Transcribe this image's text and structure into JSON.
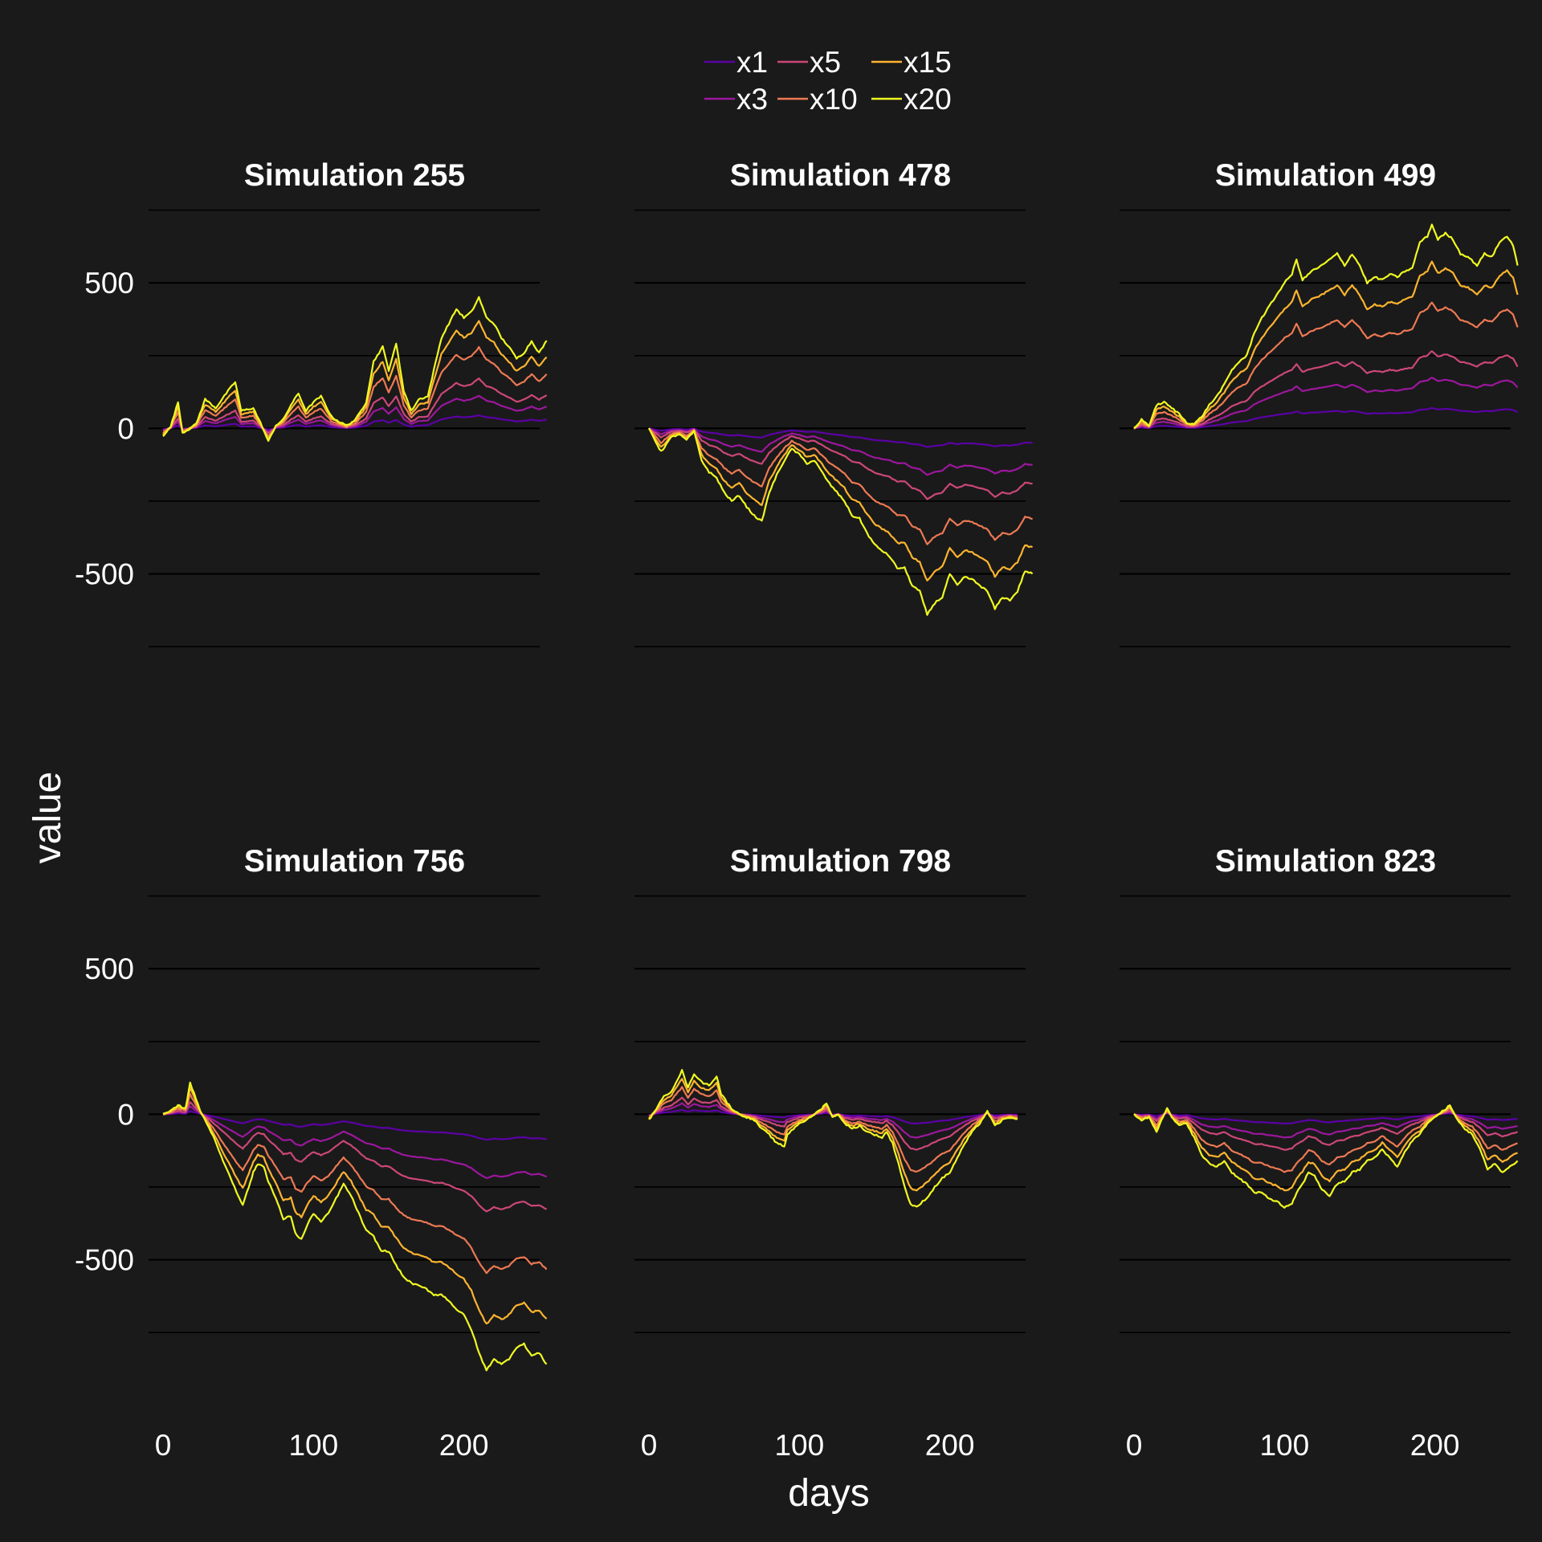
{
  "chart_data": {
    "type": "line",
    "layout": "facet-grid",
    "facet_columns": 3,
    "xlabel": "days",
    "ylabel": "value",
    "xlim": [
      0,
      260
    ],
    "ylim": [
      -860,
      760
    ],
    "x_ticks": [
      0,
      100,
      200
    ],
    "y_ticks": [
      500,
      0,
      -500
    ],
    "grid": true,
    "legend": {
      "position": "top",
      "entries": [
        "x1",
        "x3",
        "x5",
        "x10",
        "x15",
        "x20"
      ],
      "order": [
        "x1",
        "x5",
        "x15",
        "x3",
        "x10",
        "x20"
      ]
    },
    "series_colors": {
      "x1": "#5c01a6",
      "x3": "#9c179e",
      "x5": "#cc4778",
      "x10": "#ed7953",
      "x15": "#fdb42f",
      "x20": "#f0f921"
    },
    "background": "#1a1a1a",
    "panels": [
      {
        "title": "Simulation 255",
        "x20_path": [
          [
            0,
            -25
          ],
          [
            5,
            5
          ],
          [
            10,
            90
          ],
          [
            13,
            -15
          ],
          [
            18,
            0
          ],
          [
            22,
            15
          ],
          [
            28,
            100
          ],
          [
            35,
            70
          ],
          [
            42,
            120
          ],
          [
            48,
            160
          ],
          [
            52,
            60
          ],
          [
            60,
            70
          ],
          [
            66,
            5
          ],
          [
            70,
            -45
          ],
          [
            75,
            10
          ],
          [
            80,
            30
          ],
          [
            85,
            80
          ],
          [
            90,
            120
          ],
          [
            95,
            60
          ],
          [
            100,
            90
          ],
          [
            105,
            110
          ],
          [
            112,
            40
          ],
          [
            118,
            20
          ],
          [
            122,
            10
          ],
          [
            128,
            30
          ],
          [
            135,
            90
          ],
          [
            140,
            230
          ],
          [
            146,
            280
          ],
          [
            150,
            200
          ],
          [
            155,
            290
          ],
          [
            160,
            130
          ],
          [
            165,
            60
          ],
          [
            170,
            100
          ],
          [
            176,
            110
          ],
          [
            180,
            200
          ],
          [
            185,
            310
          ],
          [
            190,
            360
          ],
          [
            195,
            410
          ],
          [
            200,
            380
          ],
          [
            205,
            400
          ],
          [
            210,
            450
          ],
          [
            215,
            380
          ],
          [
            220,
            360
          ],
          [
            225,
            310
          ],
          [
            230,
            280
          ],
          [
            235,
            240
          ],
          [
            240,
            260
          ],
          [
            245,
            300
          ],
          [
            250,
            260
          ],
          [
            255,
            300
          ]
        ]
      },
      {
        "title": "Simulation 478",
        "x20_path": [
          [
            0,
            0
          ],
          [
            8,
            -80
          ],
          [
            15,
            -30
          ],
          [
            20,
            -20
          ],
          [
            25,
            -40
          ],
          [
            30,
            -10
          ],
          [
            35,
            -110
          ],
          [
            40,
            -150
          ],
          [
            45,
            -170
          ],
          [
            50,
            -220
          ],
          [
            55,
            -250
          ],
          [
            60,
            -230
          ],
          [
            65,
            -270
          ],
          [
            70,
            -300
          ],
          [
            75,
            -320
          ],
          [
            80,
            -220
          ],
          [
            85,
            -160
          ],
          [
            90,
            -110
          ],
          [
            95,
            -70
          ],
          [
            100,
            -90
          ],
          [
            105,
            -120
          ],
          [
            110,
            -110
          ],
          [
            115,
            -150
          ],
          [
            120,
            -190
          ],
          [
            125,
            -220
          ],
          [
            130,
            -250
          ],
          [
            135,
            -300
          ],
          [
            140,
            -310
          ],
          [
            145,
            -360
          ],
          [
            150,
            -400
          ],
          [
            155,
            -420
          ],
          [
            160,
            -440
          ],
          [
            165,
            -480
          ],
          [
            170,
            -480
          ],
          [
            175,
            -540
          ],
          [
            180,
            -560
          ],
          [
            185,
            -640
          ],
          [
            190,
            -600
          ],
          [
            195,
            -580
          ],
          [
            200,
            -500
          ],
          [
            205,
            -540
          ],
          [
            210,
            -510
          ],
          [
            215,
            -520
          ],
          [
            220,
            -540
          ],
          [
            225,
            -560
          ],
          [
            230,
            -620
          ],
          [
            235,
            -580
          ],
          [
            240,
            -590
          ],
          [
            245,
            -560
          ],
          [
            250,
            -490
          ],
          [
            255,
            -500
          ]
        ]
      },
      {
        "title": "Simulation 499",
        "x20_path": [
          [
            0,
            0
          ],
          [
            5,
            30
          ],
          [
            10,
            10
          ],
          [
            15,
            80
          ],
          [
            20,
            90
          ],
          [
            25,
            70
          ],
          [
            30,
            50
          ],
          [
            35,
            20
          ],
          [
            40,
            15
          ],
          [
            45,
            40
          ],
          [
            50,
            80
          ],
          [
            55,
            110
          ],
          [
            60,
            150
          ],
          [
            65,
            200
          ],
          [
            70,
            230
          ],
          [
            75,
            250
          ],
          [
            80,
            330
          ],
          [
            85,
            380
          ],
          [
            90,
            420
          ],
          [
            95,
            460
          ],
          [
            100,
            500
          ],
          [
            105,
            530
          ],
          [
            108,
            580
          ],
          [
            112,
            510
          ],
          [
            118,
            540
          ],
          [
            125,
            560
          ],
          [
            130,
            580
          ],
          [
            135,
            600
          ],
          [
            140,
            560
          ],
          [
            145,
            600
          ],
          [
            150,
            560
          ],
          [
            155,
            500
          ],
          [
            160,
            520
          ],
          [
            165,
            510
          ],
          [
            170,
            530
          ],
          [
            175,
            520
          ],
          [
            180,
            540
          ],
          [
            185,
            550
          ],
          [
            190,
            640
          ],
          [
            195,
            660
          ],
          [
            198,
            700
          ],
          [
            202,
            650
          ],
          [
            207,
            670
          ],
          [
            212,
            650
          ],
          [
            217,
            600
          ],
          [
            222,
            590
          ],
          [
            228,
            560
          ],
          [
            233,
            600
          ],
          [
            238,
            590
          ],
          [
            243,
            640
          ],
          [
            248,
            660
          ],
          [
            252,
            630
          ],
          [
            255,
            560
          ]
        ]
      },
      {
        "title": "Simulation 756",
        "x20_path": [
          [
            0,
            0
          ],
          [
            5,
            10
          ],
          [
            10,
            30
          ],
          [
            15,
            20
          ],
          [
            18,
            110
          ],
          [
            22,
            50
          ],
          [
            25,
            10
          ],
          [
            28,
            -20
          ],
          [
            32,
            -60
          ],
          [
            36,
            -110
          ],
          [
            40,
            -160
          ],
          [
            45,
            -220
          ],
          [
            50,
            -280
          ],
          [
            53,
            -310
          ],
          [
            57,
            -250
          ],
          [
            60,
            -200
          ],
          [
            63,
            -170
          ],
          [
            67,
            -180
          ],
          [
            70,
            -230
          ],
          [
            75,
            -290
          ],
          [
            80,
            -360
          ],
          [
            85,
            -350
          ],
          [
            88,
            -410
          ],
          [
            92,
            -430
          ],
          [
            96,
            -380
          ],
          [
            100,
            -340
          ],
          [
            105,
            -370
          ],
          [
            110,
            -340
          ],
          [
            115,
            -290
          ],
          [
            120,
            -240
          ],
          [
            125,
            -280
          ],
          [
            130,
            -340
          ],
          [
            135,
            -400
          ],
          [
            140,
            -420
          ],
          [
            145,
            -470
          ],
          [
            150,
            -470
          ],
          [
            155,
            -520
          ],
          [
            160,
            -560
          ],
          [
            165,
            -580
          ],
          [
            170,
            -590
          ],
          [
            175,
            -600
          ],
          [
            180,
            -620
          ],
          [
            185,
            -620
          ],
          [
            190,
            -640
          ],
          [
            195,
            -670
          ],
          [
            200,
            -690
          ],
          [
            205,
            -740
          ],
          [
            210,
            -820
          ],
          [
            215,
            -880
          ],
          [
            220,
            -840
          ],
          [
            225,
            -860
          ],
          [
            230,
            -840
          ],
          [
            235,
            -800
          ],
          [
            240,
            -790
          ],
          [
            245,
            -830
          ],
          [
            250,
            -820
          ],
          [
            255,
            -860
          ]
        ]
      },
      {
        "title": "Simulation 798",
        "x20_path": [
          [
            0,
            -20
          ],
          [
            5,
            20
          ],
          [
            10,
            60
          ],
          [
            15,
            80
          ],
          [
            18,
            110
          ],
          [
            22,
            150
          ],
          [
            26,
            90
          ],
          [
            30,
            140
          ],
          [
            35,
            110
          ],
          [
            40,
            100
          ],
          [
            45,
            130
          ],
          [
            48,
            70
          ],
          [
            52,
            40
          ],
          [
            55,
            20
          ],
          [
            60,
            0
          ],
          [
            65,
            -10
          ],
          [
            70,
            -20
          ],
          [
            75,
            -50
          ],
          [
            80,
            -70
          ],
          [
            85,
            -100
          ],
          [
            90,
            -110
          ],
          [
            92,
            -70
          ],
          [
            96,
            -50
          ],
          [
            100,
            -30
          ],
          [
            105,
            -20
          ],
          [
            110,
            0
          ],
          [
            115,
            20
          ],
          [
            118,
            40
          ],
          [
            122,
            -10
          ],
          [
            126,
            0
          ],
          [
            130,
            -30
          ],
          [
            135,
            -50
          ],
          [
            140,
            -40
          ],
          [
            145,
            -60
          ],
          [
            150,
            -70
          ],
          [
            155,
            -80
          ],
          [
            158,
            -60
          ],
          [
            162,
            -100
          ],
          [
            166,
            -170
          ],
          [
            170,
            -250
          ],
          [
            174,
            -310
          ],
          [
            178,
            -320
          ],
          [
            182,
            -300
          ],
          [
            186,
            -280
          ],
          [
            190,
            -250
          ],
          [
            195,
            -220
          ],
          [
            200,
            -200
          ],
          [
            205,
            -150
          ],
          [
            210,
            -100
          ],
          [
            215,
            -60
          ],
          [
            220,
            -30
          ],
          [
            225,
            10
          ],
          [
            230,
            -40
          ],
          [
            235,
            -20
          ],
          [
            240,
            -10
          ],
          [
            245,
            -20
          ]
        ]
      },
      {
        "title": "Simulation 823",
        "x20_path": [
          [
            0,
            0
          ],
          [
            5,
            -20
          ],
          [
            10,
            -10
          ],
          [
            15,
            -60
          ],
          [
            18,
            -20
          ],
          [
            22,
            20
          ],
          [
            25,
            -10
          ],
          [
            30,
            -40
          ],
          [
            35,
            -30
          ],
          [
            40,
            -80
          ],
          [
            45,
            -140
          ],
          [
            50,
            -170
          ],
          [
            55,
            -180
          ],
          [
            60,
            -160
          ],
          [
            65,
            -200
          ],
          [
            70,
            -220
          ],
          [
            75,
            -240
          ],
          [
            80,
            -270
          ],
          [
            85,
            -270
          ],
          [
            90,
            -290
          ],
          [
            95,
            -300
          ],
          [
            100,
            -320
          ],
          [
            105,
            -310
          ],
          [
            108,
            -270
          ],
          [
            112,
            -240
          ],
          [
            116,
            -200
          ],
          [
            120,
            -210
          ],
          [
            125,
            -260
          ],
          [
            130,
            -280
          ],
          [
            135,
            -240
          ],
          [
            140,
            -230
          ],
          [
            145,
            -200
          ],
          [
            150,
            -190
          ],
          [
            155,
            -160
          ],
          [
            160,
            -150
          ],
          [
            165,
            -120
          ],
          [
            170,
            -150
          ],
          [
            175,
            -180
          ],
          [
            180,
            -130
          ],
          [
            185,
            -90
          ],
          [
            190,
            -70
          ],
          [
            195,
            -30
          ],
          [
            200,
            -10
          ],
          [
            205,
            10
          ],
          [
            210,
            30
          ],
          [
            215,
            -20
          ],
          [
            220,
            -50
          ],
          [
            225,
            -70
          ],
          [
            230,
            -120
          ],
          [
            235,
            -190
          ],
          [
            240,
            -170
          ],
          [
            245,
            -200
          ],
          [
            250,
            -180
          ],
          [
            255,
            -160
          ]
        ]
      }
    ]
  }
}
